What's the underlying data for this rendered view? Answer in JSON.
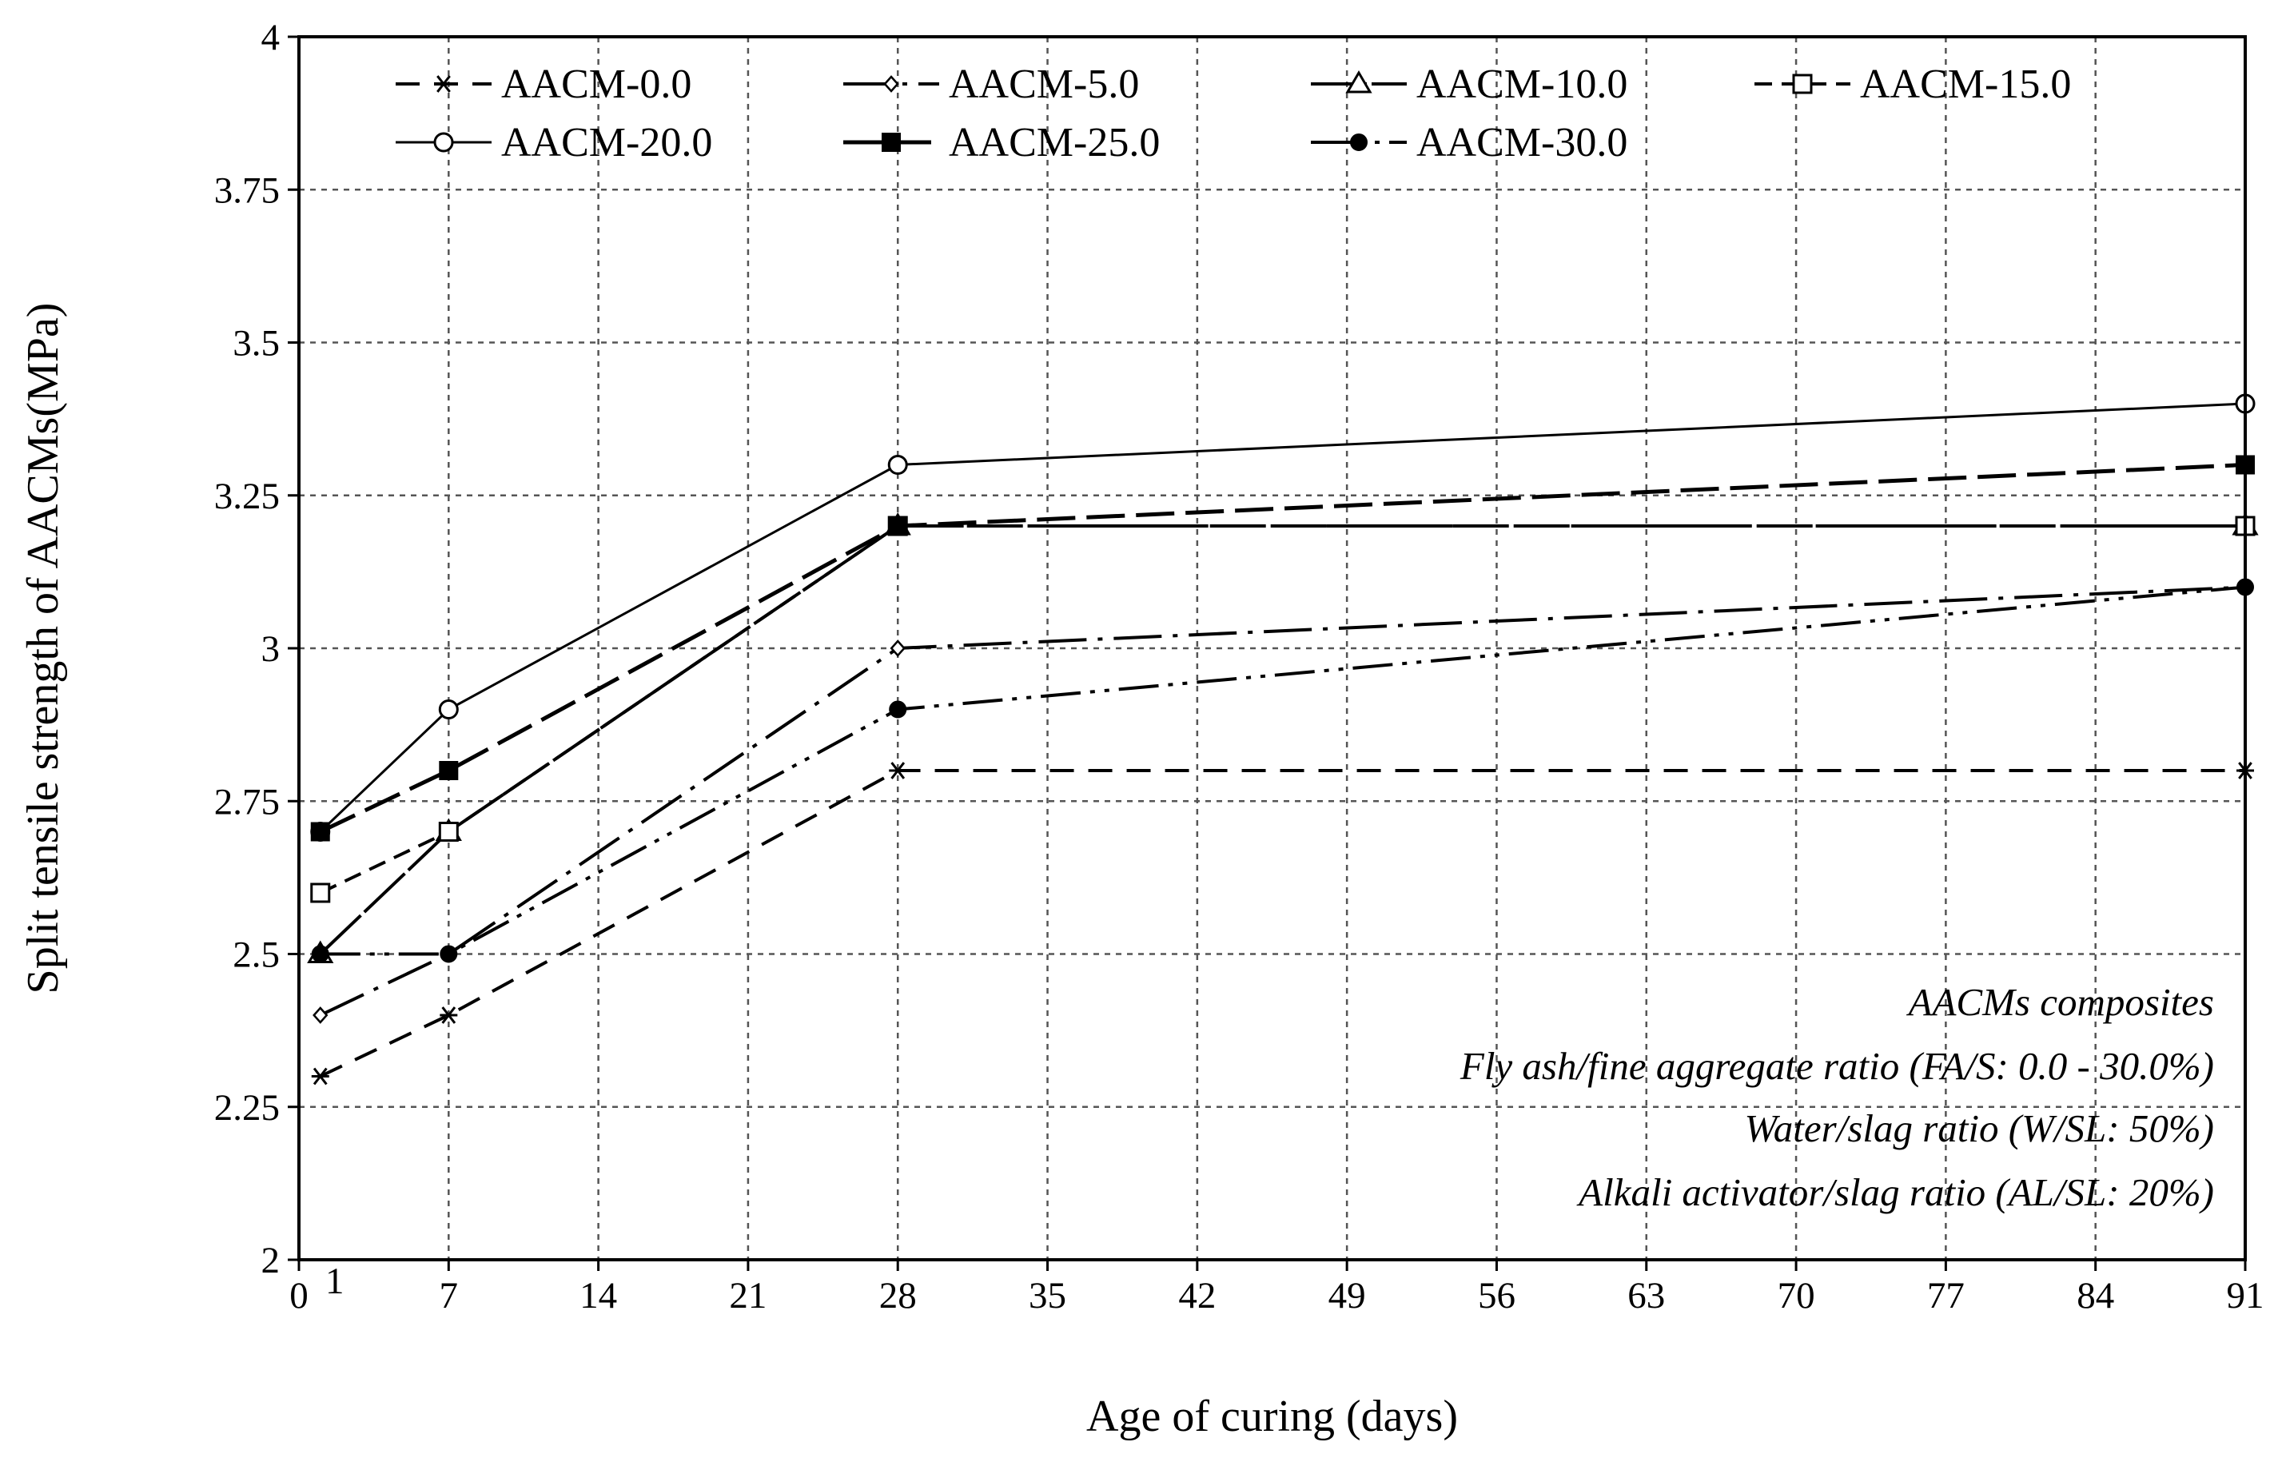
{
  "chart_data": {
    "type": "line",
    "title": "",
    "xlabel": "Age of curing (days)",
    "ylabel": "Split tensile strength of AACMs(MPa)",
    "xlim": [
      0,
      91
    ],
    "ylim": [
      2,
      4
    ],
    "x_ticks": [
      "0",
      "1",
      "7",
      "14",
      "21",
      "28",
      "35",
      "42",
      "49",
      "56",
      "63",
      "70",
      "77",
      "84",
      "91"
    ],
    "y_ticks": [
      "2",
      "2.25",
      "2.5",
      "2.75",
      "3",
      "3.25",
      "3.5",
      "3.75",
      "4"
    ],
    "x": [
      1,
      7,
      28,
      91
    ],
    "grid": true,
    "legend_position": "top",
    "series": [
      {
        "name": "AACM-0.0",
        "values": [
          2.3,
          2.4,
          2.8,
          2.8
        ],
        "marker": "asterisk",
        "line": "dashed"
      },
      {
        "name": "AACM-5.0",
        "values": [
          2.4,
          2.5,
          3.0,
          3.1
        ],
        "marker": "diamond-open",
        "line": "dash-dot"
      },
      {
        "name": "AACM-10.0",
        "values": [
          2.5,
          2.7,
          3.2,
          3.2
        ],
        "marker": "triangle-open",
        "line": "long-dash"
      },
      {
        "name": "AACM-15.0",
        "values": [
          2.6,
          2.7,
          3.2,
          3.2
        ],
        "marker": "square-open",
        "line": "short-dash"
      },
      {
        "name": "AACM-20.0",
        "values": [
          2.7,
          2.9,
          3.3,
          3.4
        ],
        "marker": "circle-open",
        "line": "solid"
      },
      {
        "name": "AACM-25.0",
        "values": [
          2.7,
          2.8,
          3.2,
          3.3
        ],
        "marker": "square-filled",
        "line": "medium-dash"
      },
      {
        "name": "AACM-30.0",
        "values": [
          2.5,
          2.5,
          2.9,
          3.1
        ],
        "marker": "circle-filled",
        "line": "dash-dot-dot"
      }
    ],
    "annotations": [
      "AACMs composites",
      "Fly ash/fine aggregate ratio (FA/S: 0.0 - 30.0%)",
      "Water/slag ratio (W/SL: 50%)",
      "Alkali activator/slag ratio (AL/SL: 20%)"
    ]
  }
}
